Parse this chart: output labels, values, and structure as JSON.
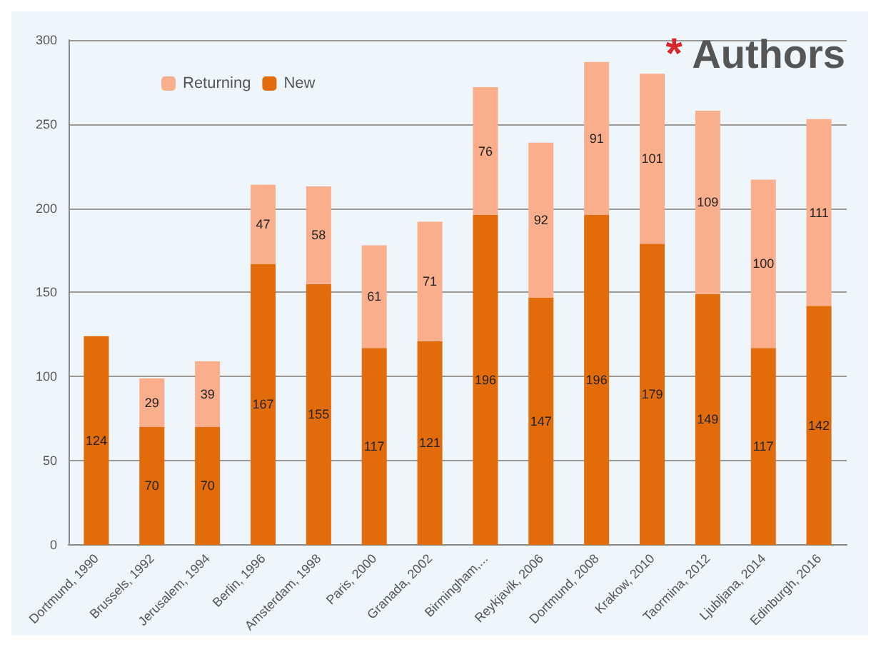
{
  "chart_data": {
    "type": "bar",
    "title": "* Authors",
    "stacked": true,
    "data_labels": true,
    "grid": "y",
    "legend": "top left",
    "categories": [
      "Dortmund, 1990",
      "Brussels, 1992",
      "Jerusalem, 1994",
      "Berlin, 1996",
      "Amsterdam, 1998",
      "Paris, 2000",
      "Granada, 2002",
      "Birmingham,...",
      "Reykjavik, 2006",
      "Dortmund, 2008",
      "Krakow, 2010",
      "Taormina, 2012",
      "Ljubljana, 2014",
      "Edinburgh, 2016"
    ],
    "series": [
      {
        "name": "New",
        "color": "#e36c0a",
        "values": [
          124,
          70,
          70,
          167,
          155,
          117,
          121,
          196,
          147,
          196,
          179,
          149,
          117,
          142
        ]
      },
      {
        "name": "Returning",
        "color": "#fbae8b",
        "values": [
          null,
          29,
          39,
          47,
          58,
          61,
          71,
          76,
          92,
          91,
          101,
          109,
          100,
          111
        ]
      }
    ],
    "ylim": [
      0,
      300
    ],
    "yticks": [
      0,
      50,
      100,
      150,
      200,
      250,
      300
    ]
  }
}
